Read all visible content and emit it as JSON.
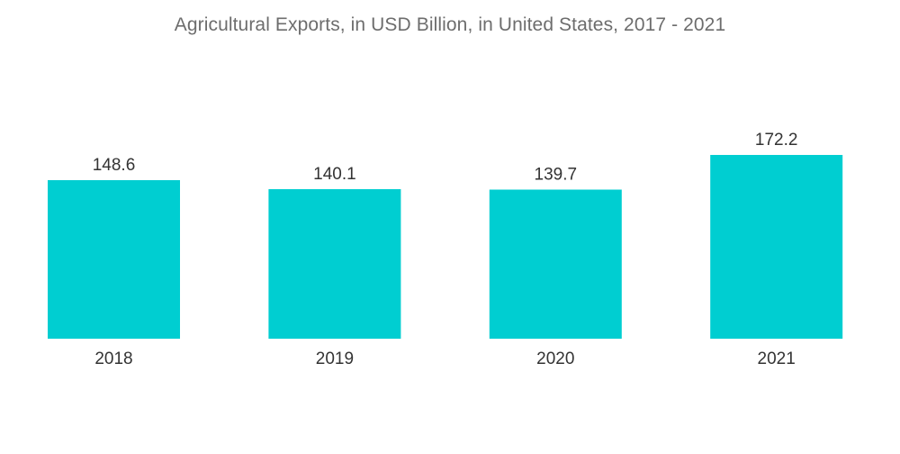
{
  "chart_data": {
    "type": "bar",
    "title": "Agricultural Exports, in USD Billion, in United States, 2017 - 2021",
    "categories": [
      "2018",
      "2019",
      "2020",
      "2021"
    ],
    "values": [
      148.6,
      140.1,
      139.7,
      172.2
    ],
    "value_labels": [
      "148.6",
      "140.1",
      "139.7",
      "172.2"
    ],
    "xlabel": "",
    "ylabel": "",
    "ylim": [
      0,
      172.2
    ],
    "grid": false,
    "legend": "none",
    "bar_color": "#00ced1"
  }
}
